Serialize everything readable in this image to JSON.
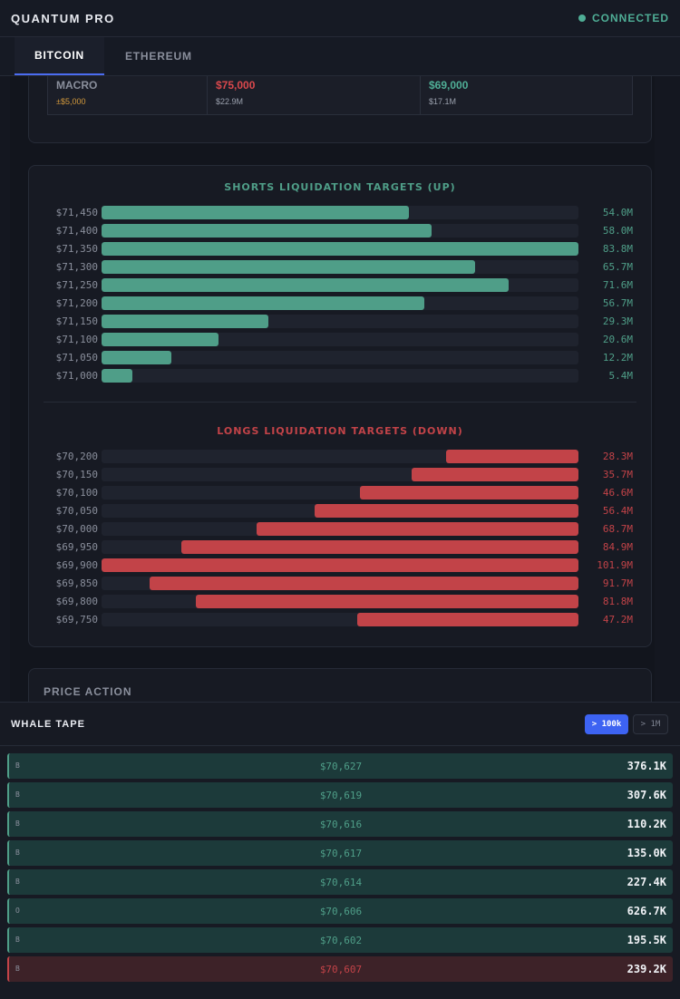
{
  "app": {
    "title": "QUANTUM PRO",
    "status": "CONNECTED",
    "status_color": "#4fae96"
  },
  "tabs": [
    {
      "label": "BITCOIN",
      "active": true
    },
    {
      "label": "ETHEREUM",
      "active": false
    }
  ],
  "macro": {
    "cells": [
      {
        "main": "MACRO",
        "sub": "±$5,000",
        "main_color": "#8a8f9c",
        "sub_color": "#d49a3c"
      },
      {
        "main": "$75,000",
        "sub": "$22.9M",
        "main_color": "#d9484c",
        "sub_color": "#9aa0ad"
      },
      {
        "main": "$69,000",
        "sub": "$17.1M",
        "main_color": "#4fae96",
        "sub_color": "#9aa0ad"
      }
    ]
  },
  "shorts": {
    "title": "SHORTS LIQUIDATION TARGETS (UP)",
    "color": "#4f9e88",
    "max_value": 83.8,
    "rows": [
      {
        "price": "$71,450",
        "value": 54.0,
        "label": "54.0M"
      },
      {
        "price": "$71,400",
        "value": 58.0,
        "label": "58.0M"
      },
      {
        "price": "$71,350",
        "value": 83.8,
        "label": "83.8M"
      },
      {
        "price": "$71,300",
        "value": 65.7,
        "label": "65.7M"
      },
      {
        "price": "$71,250",
        "value": 71.6,
        "label": "71.6M"
      },
      {
        "price": "$71,200",
        "value": 56.7,
        "label": "56.7M"
      },
      {
        "price": "$71,150",
        "value": 29.3,
        "label": "29.3M"
      },
      {
        "price": "$71,100",
        "value": 20.6,
        "label": "20.6M"
      },
      {
        "price": "$71,050",
        "value": 12.2,
        "label": "12.2M"
      },
      {
        "price": "$71,000",
        "value": 5.4,
        "label": "5.4M"
      }
    ]
  },
  "longs": {
    "title": "LONGS LIQUIDATION TARGETS (DOWN)",
    "color": "#c24348",
    "max_value": 101.9,
    "rows": [
      {
        "price": "$70,200",
        "value": 28.3,
        "label": "28.3M"
      },
      {
        "price": "$70,150",
        "value": 35.7,
        "label": "35.7M"
      },
      {
        "price": "$70,100",
        "value": 46.6,
        "label": "46.6M"
      },
      {
        "price": "$70,050",
        "value": 56.4,
        "label": "56.4M"
      },
      {
        "price": "$70,000",
        "value": 68.7,
        "label": "68.7M"
      },
      {
        "price": "$69,950",
        "value": 84.9,
        "label": "84.9M"
      },
      {
        "price": "$69,900",
        "value": 101.9,
        "label": "101.9M"
      },
      {
        "price": "$69,850",
        "value": 91.7,
        "label": "91.7M"
      },
      {
        "price": "$69,800",
        "value": 81.8,
        "label": "81.8M"
      },
      {
        "price": "$69,750",
        "value": 47.2,
        "label": "47.2M"
      }
    ]
  },
  "price_action": {
    "title": "PRICE ACTION"
  },
  "whale_tape": {
    "title": "WHALE TAPE",
    "filters": [
      {
        "label": "> 100k",
        "active": true
      },
      {
        "label": "> 1M",
        "active": false
      }
    ],
    "rows": [
      {
        "side": "B",
        "price": "$70,627",
        "size": "376.1K",
        "dir": "buy"
      },
      {
        "side": "B",
        "price": "$70,619",
        "size": "307.6K",
        "dir": "buy"
      },
      {
        "side": "B",
        "price": "$70,616",
        "size": "110.2K",
        "dir": "buy"
      },
      {
        "side": "B",
        "price": "$70,617",
        "size": "135.0K",
        "dir": "buy"
      },
      {
        "side": "B",
        "price": "$70,614",
        "size": "227.4K",
        "dir": "buy"
      },
      {
        "side": "O",
        "price": "$70,606",
        "size": "626.7K",
        "dir": "buy"
      },
      {
        "side": "B",
        "price": "$70,602",
        "size": "195.5K",
        "dir": "buy"
      },
      {
        "side": "B",
        "price": "$70,607",
        "size": "239.2K",
        "dir": "sell"
      }
    ]
  }
}
